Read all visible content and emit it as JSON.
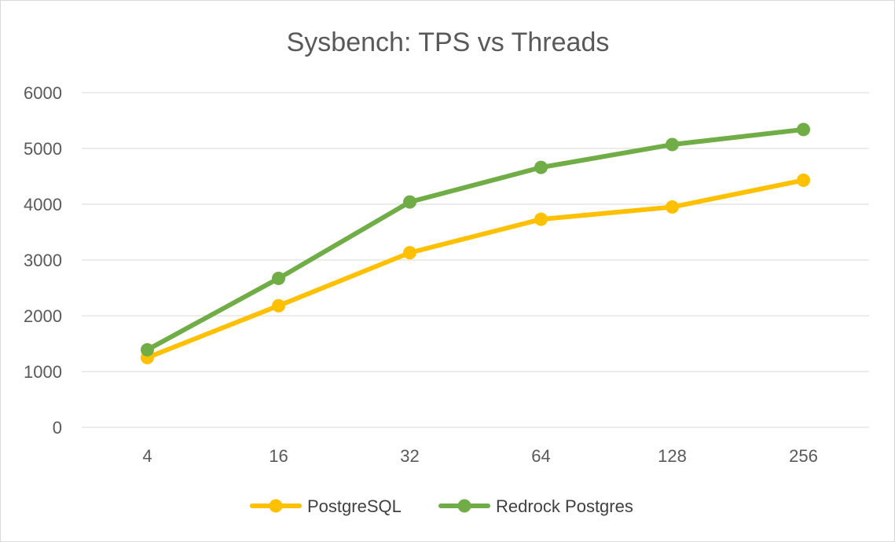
{
  "chart_data": {
    "type": "line",
    "title": "Sysbench: TPS vs Threads",
    "xlabel": "",
    "ylabel": "",
    "categories": [
      "4",
      "16",
      "32",
      "64",
      "128",
      "256"
    ],
    "ylim": [
      0,
      6000
    ],
    "yticks": [
      0,
      1000,
      2000,
      3000,
      4000,
      5000,
      6000
    ],
    "grid": true,
    "legend": "bottom",
    "series": [
      {
        "name": "PostgreSQL",
        "color": "#FFC000",
        "values": [
          1250,
          2180,
          3130,
          3730,
          3950,
          4430
        ]
      },
      {
        "name": "Redrock Postgres",
        "color": "#70AD47",
        "values": [
          1390,
          2670,
          4040,
          4660,
          5070,
          5340
        ]
      }
    ]
  }
}
